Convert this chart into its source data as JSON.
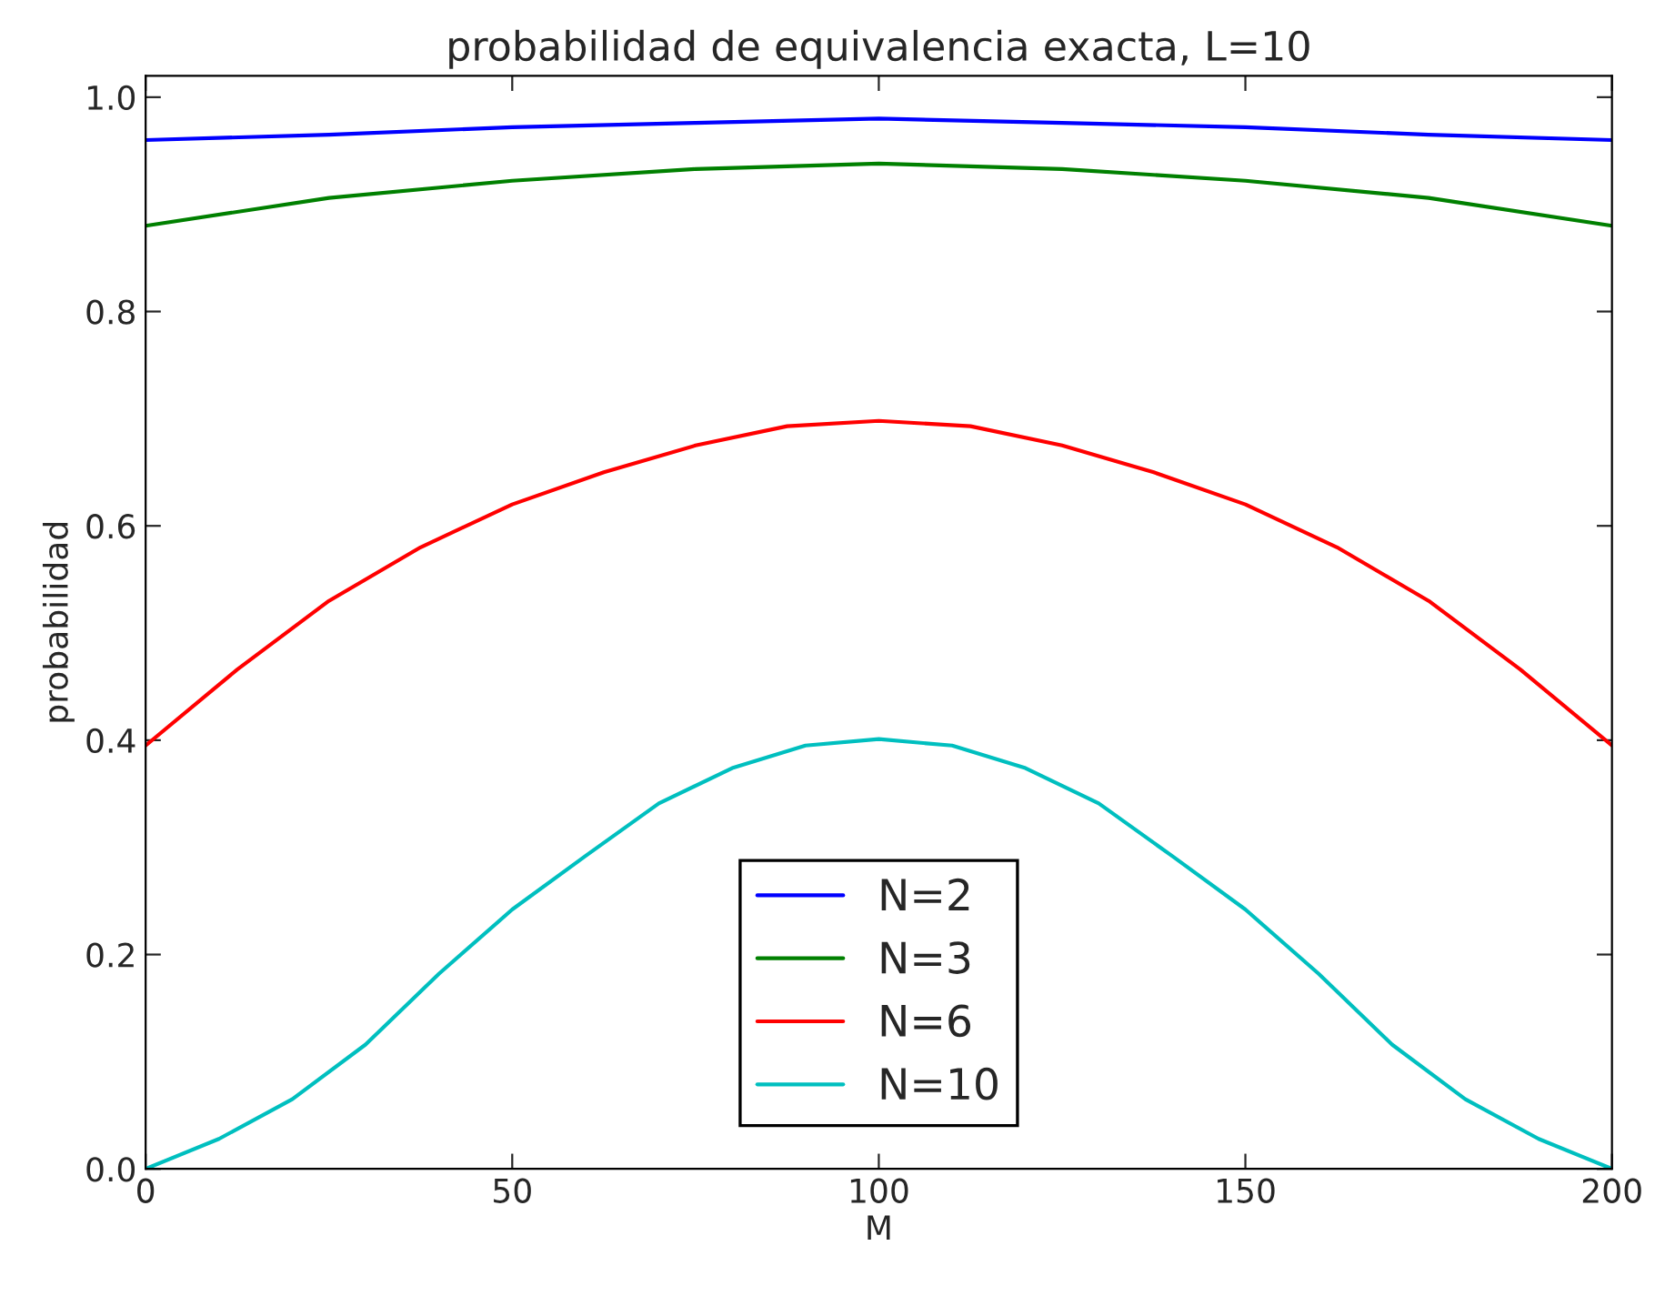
{
  "chart_data": {
    "type": "line",
    "title": "probabilidad de equivalencia exacta, L=10",
    "xlabel": "M",
    "ylabel": "probabilidad",
    "xlim": [
      0,
      200
    ],
    "ylim": [
      0,
      1.02
    ],
    "xticks": [
      0,
      50,
      100,
      150,
      200
    ],
    "yticks": [
      {
        "value": 0,
        "label": "0.0"
      },
      0.2,
      0.4,
      0.6,
      0.8,
      {
        "value": 1,
        "label": "1.0"
      }
    ],
    "grid": false,
    "legend": "bottom",
    "marker": "none",
    "line_style": "solid",
    "series": [
      {
        "name": "N=2",
        "color": "#0000ff",
        "x": [
          0,
          25,
          50,
          75,
          100,
          125,
          150,
          175,
          200
        ],
        "values": [
          0.96,
          0.965,
          0.972,
          0.976,
          0.98,
          0.976,
          0.972,
          0.965,
          0.96
        ]
      },
      {
        "name": "N=3",
        "color": "#008000",
        "x": [
          0,
          25,
          50,
          75,
          100,
          125,
          150,
          175,
          200
        ],
        "values": [
          0.88,
          0.906,
          0.922,
          0.933,
          0.938,
          0.933,
          0.922,
          0.906,
          0.88
        ]
      },
      {
        "name": "N=6",
        "color": "#ff0000",
        "x": [
          0,
          12.5,
          25,
          37.5,
          50,
          62.5,
          75,
          87.5,
          100,
          112.5,
          125,
          137.5,
          150,
          162.5,
          175,
          187.5,
          200
        ],
        "values": [
          0.395,
          0.466,
          0.53,
          0.58,
          0.62,
          0.65,
          0.675,
          0.693,
          0.698,
          0.693,
          0.675,
          0.65,
          0.62,
          0.58,
          0.53,
          0.466,
          0.395
        ]
      },
      {
        "name": "N=10",
        "color": "#00bfbf",
        "x": [
          0,
          10,
          20,
          30,
          40,
          50,
          60,
          70,
          80,
          90,
          100,
          110,
          120,
          130,
          140,
          150,
          160,
          170,
          180,
          190,
          200
        ],
        "values": [
          0,
          0.028,
          0.065,
          0.116,
          0.182,
          0.242,
          0.292,
          0.341,
          0.374,
          0.395,
          0.401,
          0.395,
          0.374,
          0.341,
          0.292,
          0.242,
          0.182,
          0.116,
          0.065,
          0.028,
          0
        ]
      }
    ]
  }
}
